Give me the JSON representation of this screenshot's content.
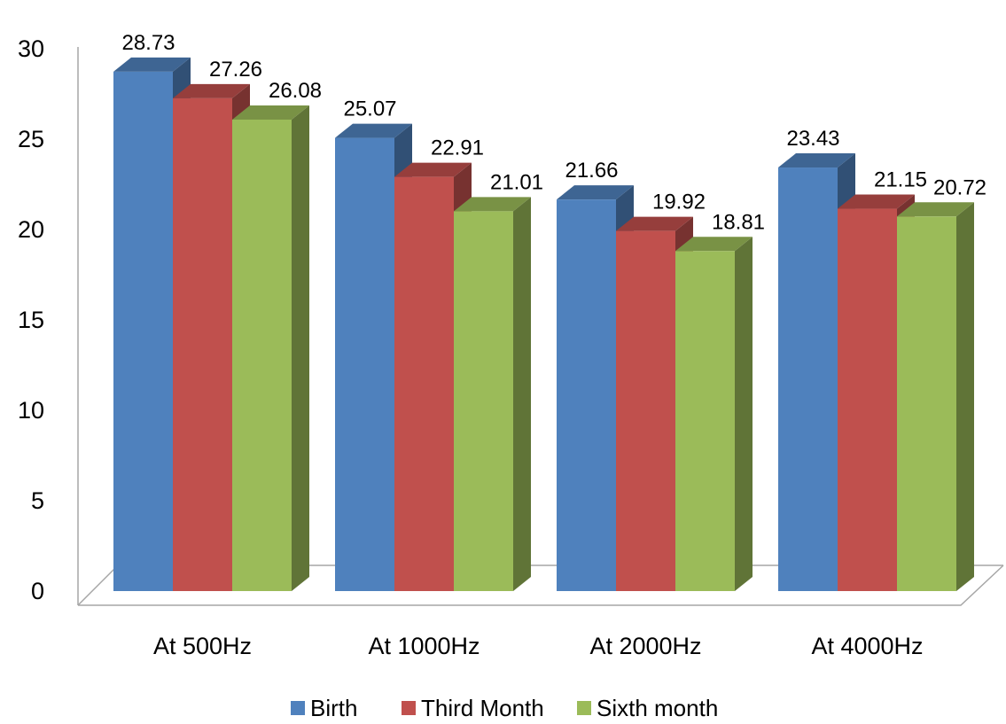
{
  "chart_data": {
    "type": "bar",
    "style": "3d-clustered-column",
    "title": "",
    "xlabel": "",
    "ylabel": "",
    "categories": [
      "At 500Hz",
      "At 1000Hz",
      "At 2000Hz",
      "At 4000Hz"
    ],
    "series": [
      {
        "name": "Birth",
        "color": "#4F81BD",
        "values": [
          28.73,
          25.07,
          21.66,
          23.43
        ]
      },
      {
        "name": "Third Month",
        "color": "#C0504D",
        "values": [
          27.26,
          22.91,
          19.92,
          21.15
        ]
      },
      {
        "name": "Sixth month",
        "color": "#9BBB59",
        "values": [
          26.08,
          21.01,
          18.81,
          20.72
        ]
      }
    ],
    "ylim": [
      0,
      30
    ],
    "yticks": [
      "0",
      "5",
      "10",
      "15",
      "20",
      "25",
      "30"
    ],
    "grid": false,
    "data_labels": true,
    "legend_position": "bottom"
  }
}
